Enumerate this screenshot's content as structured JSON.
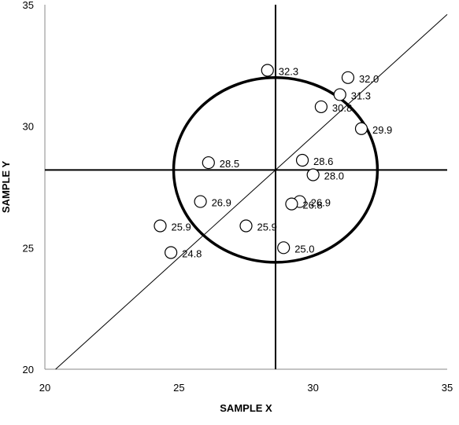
{
  "chart_data": {
    "type": "scatter",
    "title": "",
    "xlabel": "SAMPLE X",
    "ylabel": "SAMPLE Y",
    "xlim": [
      20,
      35
    ],
    "ylim": [
      20,
      35
    ],
    "x_ticks": [
      20,
      25,
      30,
      35
    ],
    "y_ticks": [
      20,
      25,
      30,
      35
    ],
    "grid": false,
    "legend": "none",
    "mean_x": 28.6,
    "mean_y": 28.2,
    "circle_radius": 3.8,
    "reference_line": [
      [
        20.4,
        20
      ],
      [
        35,
        34.6
      ]
    ],
    "points": [
      {
        "x": 28.3,
        "y": 32.3,
        "label": "32.3"
      },
      {
        "x": 31.3,
        "y": 32.0,
        "label": "32.0"
      },
      {
        "x": 31.0,
        "y": 31.3,
        "label": "31.3"
      },
      {
        "x": 30.3,
        "y": 30.8,
        "label": "30.8"
      },
      {
        "x": 31.8,
        "y": 29.9,
        "label": "29.9"
      },
      {
        "x": 26.1,
        "y": 28.5,
        "label": "28.5"
      },
      {
        "x": 29.6,
        "y": 28.6,
        "label": "28.6"
      },
      {
        "x": 30.0,
        "y": 28.0,
        "label": "28.0"
      },
      {
        "x": 25.8,
        "y": 26.9,
        "label": "26.9"
      },
      {
        "x": 29.5,
        "y": 26.9,
        "label": "26.9"
      },
      {
        "x": 29.2,
        "y": 26.8,
        "label": "26.8"
      },
      {
        "x": 24.3,
        "y": 25.9,
        "label": "25.9"
      },
      {
        "x": 27.5,
        "y": 25.9,
        "label": "25.9"
      },
      {
        "x": 24.7,
        "y": 24.8,
        "label": "24.8"
      },
      {
        "x": 28.9,
        "y": 25.0,
        "label": "25.0"
      }
    ]
  }
}
